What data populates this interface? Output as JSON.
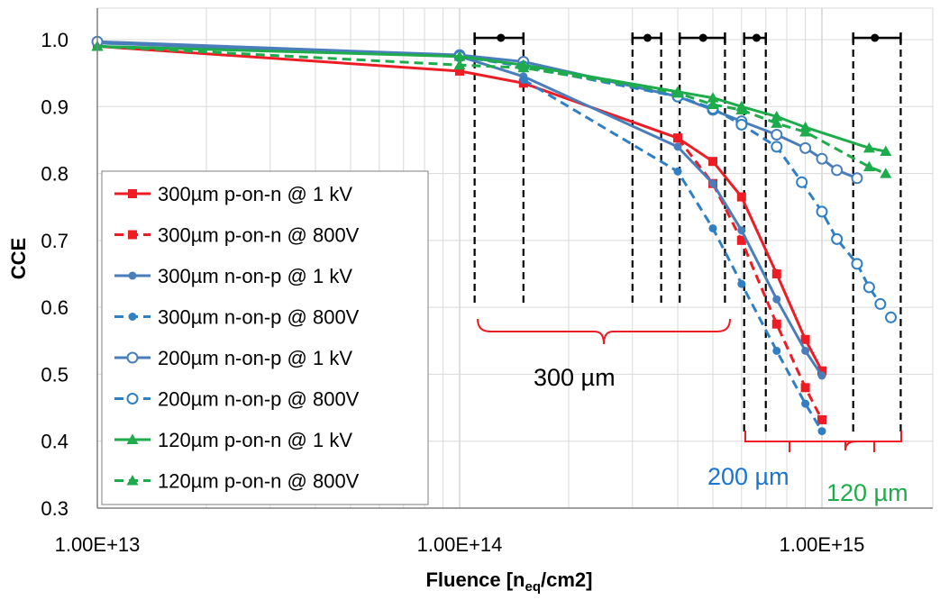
{
  "chart_data": {
    "type": "line",
    "xscale": "log",
    "xlim": [
      10000000000000.0,
      1800000000000000.0
    ],
    "ylim": [
      0.3,
      1.0
    ],
    "xticks": [
      "1.00E+13",
      "1.00E+14",
      "1.00E+15"
    ],
    "yticks": [
      "0.3",
      "0.4",
      "0.5",
      "0.6",
      "0.7",
      "0.8",
      "0.9",
      "1.0"
    ],
    "ylabel": "CCE",
    "xlabel_main": "Fluence [n",
    "xlabel_sub": "eq",
    "xlabel_tail": "/cm2]",
    "legend_position": "left",
    "colors": {
      "red": "#ee1c24",
      "blue": "#4a7ebb",
      "lightblue": "#2f7fc4",
      "green": "#1eab4b"
    },
    "series": [
      {
        "name": "300µm p-on-n @ 1 kV",
        "color": "#ee1c24",
        "dash": false,
        "marker": "square",
        "x": [
          10000000000000.0,
          100000000000000.0,
          150000000000000.0,
          400000000000000.0,
          500000000000000.0,
          600000000000000.0,
          750000000000000.0,
          900000000000000.0,
          1000000000000000.0
        ],
        "y": [
          0.99,
          0.953,
          0.935,
          0.853,
          0.818,
          0.765,
          0.65,
          0.552,
          0.505
        ]
      },
      {
        "name": "300µm p-on-n @ 800V",
        "color": "#ee1c24",
        "dash": true,
        "marker": "square",
        "x": [
          400000000000000.0,
          500000000000000.0,
          600000000000000.0,
          750000000000000.0,
          900000000000000.0,
          1000000000000000.0
        ],
        "y": [
          0.853,
          0.785,
          0.7,
          0.575,
          0.48,
          0.432
        ]
      },
      {
        "name": "300µm n-on-p @ 1 kV",
        "color": "#4a7ebb",
        "dash": false,
        "marker": "dot",
        "x": [
          10000000000000.0,
          100000000000000.0,
          150000000000000.0,
          400000000000000.0,
          500000000000000.0,
          600000000000000.0,
          750000000000000.0,
          900000000000000.0,
          1000000000000000.0
        ],
        "y": [
          0.995,
          0.975,
          0.945,
          0.84,
          0.785,
          0.715,
          0.612,
          0.535,
          0.498
        ]
      },
      {
        "name": "300µm n-on-p @ 800V",
        "color": "#2f7fc4",
        "dash": true,
        "marker": "dot",
        "x": [
          150000000000000.0,
          400000000000000.0,
          500000000000000.0,
          600000000000000.0,
          750000000000000.0,
          900000000000000.0,
          1000000000000000.0
        ],
        "y": [
          0.94,
          0.803,
          0.718,
          0.635,
          0.535,
          0.456,
          0.415
        ]
      },
      {
        "name": "200µm n-on-p @ 1 kV",
        "color": "#4a7ebb",
        "dash": false,
        "marker": "circle",
        "x": [
          10000000000000.0,
          100000000000000.0,
          150000000000000.0,
          400000000000000.0,
          500000000000000.0,
          600000000000000.0,
          750000000000000.0,
          900000000000000.0,
          1000000000000000.0,
          1100000000000000.0,
          1250000000000000.0
        ],
        "y": [
          0.997,
          0.977,
          0.967,
          0.915,
          0.895,
          0.878,
          0.858,
          0.838,
          0.822,
          0.805,
          0.793
        ]
      },
      {
        "name": "200µm n-on-p @ 800V",
        "color": "#2f7fc4",
        "dash": true,
        "marker": "circle",
        "x": [
          100000000000000.0,
          150000000000000.0,
          400000000000000.0,
          500000000000000.0,
          600000000000000.0,
          750000000000000.0,
          880000000000000.0,
          1000000000000000.0,
          1100000000000000.0,
          1250000000000000.0,
          1350000000000000.0,
          1450000000000000.0,
          1550000000000000.0
        ],
        "y": [
          0.975,
          0.96,
          0.915,
          0.897,
          0.873,
          0.84,
          0.787,
          0.743,
          0.702,
          0.665,
          0.63,
          0.605,
          0.585
        ]
      },
      {
        "name": "120µm p-on-n @ 1 kV",
        "color": "#1eab4b",
        "dash": false,
        "marker": "triangle",
        "x": [
          10000000000000.0,
          100000000000000.0,
          150000000000000.0,
          400000000000000.0,
          500000000000000.0,
          600000000000000.0,
          750000000000000.0,
          900000000000000.0,
          1350000000000000.0,
          1500000000000000.0
        ],
        "y": [
          0.99,
          0.975,
          0.962,
          0.922,
          0.913,
          0.9,
          0.885,
          0.869,
          0.838,
          0.833
        ]
      },
      {
        "name": "120µm p-on-n @ 800V",
        "color": "#1eab4b",
        "dash": true,
        "marker": "triangle",
        "x": [
          10000000000000.0,
          100000000000000.0,
          150000000000000.0,
          400000000000000.0,
          500000000000000.0,
          600000000000000.0,
          750000000000000.0,
          900000000000000.0,
          1350000000000000.0,
          1500000000000000.0
        ],
        "y": [
          0.99,
          0.962,
          0.958,
          0.92,
          0.903,
          0.895,
          0.875,
          0.862,
          0.81,
          0.8
        ]
      }
    ],
    "annotations": [
      {
        "text": "300 µm",
        "color": "#000000"
      },
      {
        "text": "200 µm",
        "color": "#1a75d2"
      },
      {
        "text": "120 µm",
        "color": "#1eab4b"
      }
    ],
    "error_bars": [
      {
        "center": 130000000000000.0,
        "low": 110000000000000.0,
        "high": 150000000000000.0
      },
      {
        "center": 330000000000000.0,
        "low": 300000000000000.0,
        "high": 360000000000000.0
      },
      {
        "center": 470000000000000.0,
        "low": 405000000000000.0,
        "high": 540000000000000.0
      },
      {
        "center": 660000000000000.0,
        "low": 610000000000000.0,
        "high": 700000000000000.0
      },
      {
        "center": 1400000000000000.0,
        "low": 1220000000000000.0,
        "high": 1650000000000000.0
      }
    ]
  }
}
